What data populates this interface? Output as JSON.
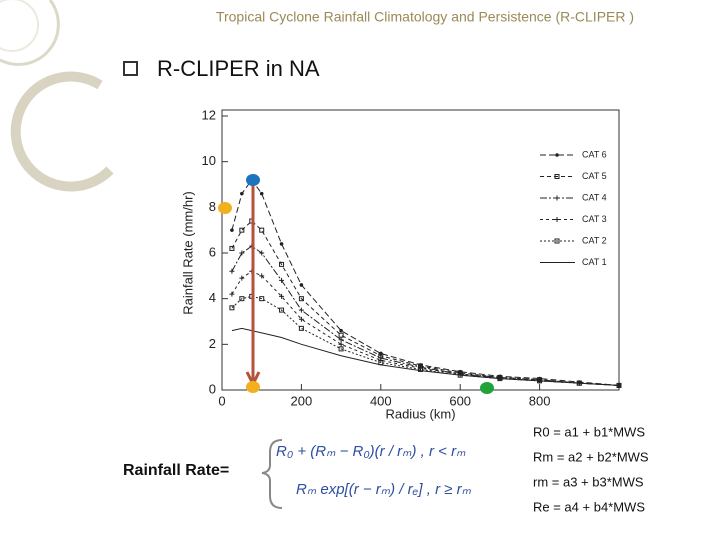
{
  "slide_title": "Tropical Cyclone Rainfall Climatology and Persistence (R-CLIPER )",
  "bullet": "R-CLIPER in NA",
  "chart_data": {
    "type": "line",
    "x_label": "Radius (km)",
    "y_label": "Rainfall Rate (mm/hr)",
    "x": [
      25,
      50,
      75,
      100,
      150,
      200,
      300,
      400,
      500,
      600,
      700,
      800,
      900,
      1000
    ],
    "series": [
      {
        "name": "CAT 6",
        "color": "#222222",
        "values": [
          7.0,
          8.6,
          9.2,
          8.6,
          6.4,
          4.6,
          2.6,
          1.6,
          1.1,
          0.8,
          0.6,
          0.5,
          0.35,
          0.2
        ]
      },
      {
        "name": "CAT 5",
        "color": "#222222",
        "values": [
          6.2,
          7.0,
          7.4,
          7.0,
          5.5,
          4.0,
          2.4,
          1.5,
          1.05,
          0.75,
          0.55,
          0.45,
          0.3,
          0.2
        ]
      },
      {
        "name": "CAT 4",
        "color": "#222222",
        "values": [
          5.2,
          6.0,
          6.3,
          6.0,
          4.8,
          3.5,
          2.2,
          1.4,
          1.0,
          0.7,
          0.55,
          0.45,
          0.3,
          0.2
        ]
      },
      {
        "name": "CAT 3",
        "color": "#222222",
        "values": [
          4.2,
          4.9,
          5.2,
          5.0,
          4.1,
          3.1,
          2.0,
          1.3,
          0.95,
          0.7,
          0.5,
          0.4,
          0.3,
          0.2
        ]
      },
      {
        "name": "CAT 2",
        "color": "#222222",
        "values": [
          3.6,
          4.0,
          4.1,
          4.0,
          3.5,
          2.7,
          1.8,
          1.2,
          0.9,
          0.65,
          0.5,
          0.4,
          0.3,
          0.2
        ]
      },
      {
        "name": "CAT 1",
        "color": "#222222",
        "values": [
          2.6,
          2.7,
          2.6,
          2.5,
          2.3,
          2.0,
          1.5,
          1.1,
          0.85,
          0.65,
          0.5,
          0.4,
          0.3,
          0.2
        ]
      }
    ],
    "xlim": [
      0,
      1000
    ],
    "xticks": [
      0,
      200,
      400,
      600,
      800
    ],
    "ylim": [
      0,
      12
    ],
    "yticks": [
      0,
      2,
      4,
      6,
      8,
      10,
      12
    ],
    "legend": "upper right"
  },
  "equation": {
    "label": "Rainfall Rate=",
    "case1": "R₀ + (Rₘ − R₀)(r / rₘ) ,  r < rₘ",
    "case2": "Rₘ exp[(r − rₘ) / rₑ] ,  r ≥ rₘ"
  },
  "coefficients": [
    "R0  = a1  + b1*MWS",
    "Rm  = a2 + b2*MWS",
    "rm  =  a3 + b3*MWS",
    "Re    = a4 + b4*MWS"
  ]
}
